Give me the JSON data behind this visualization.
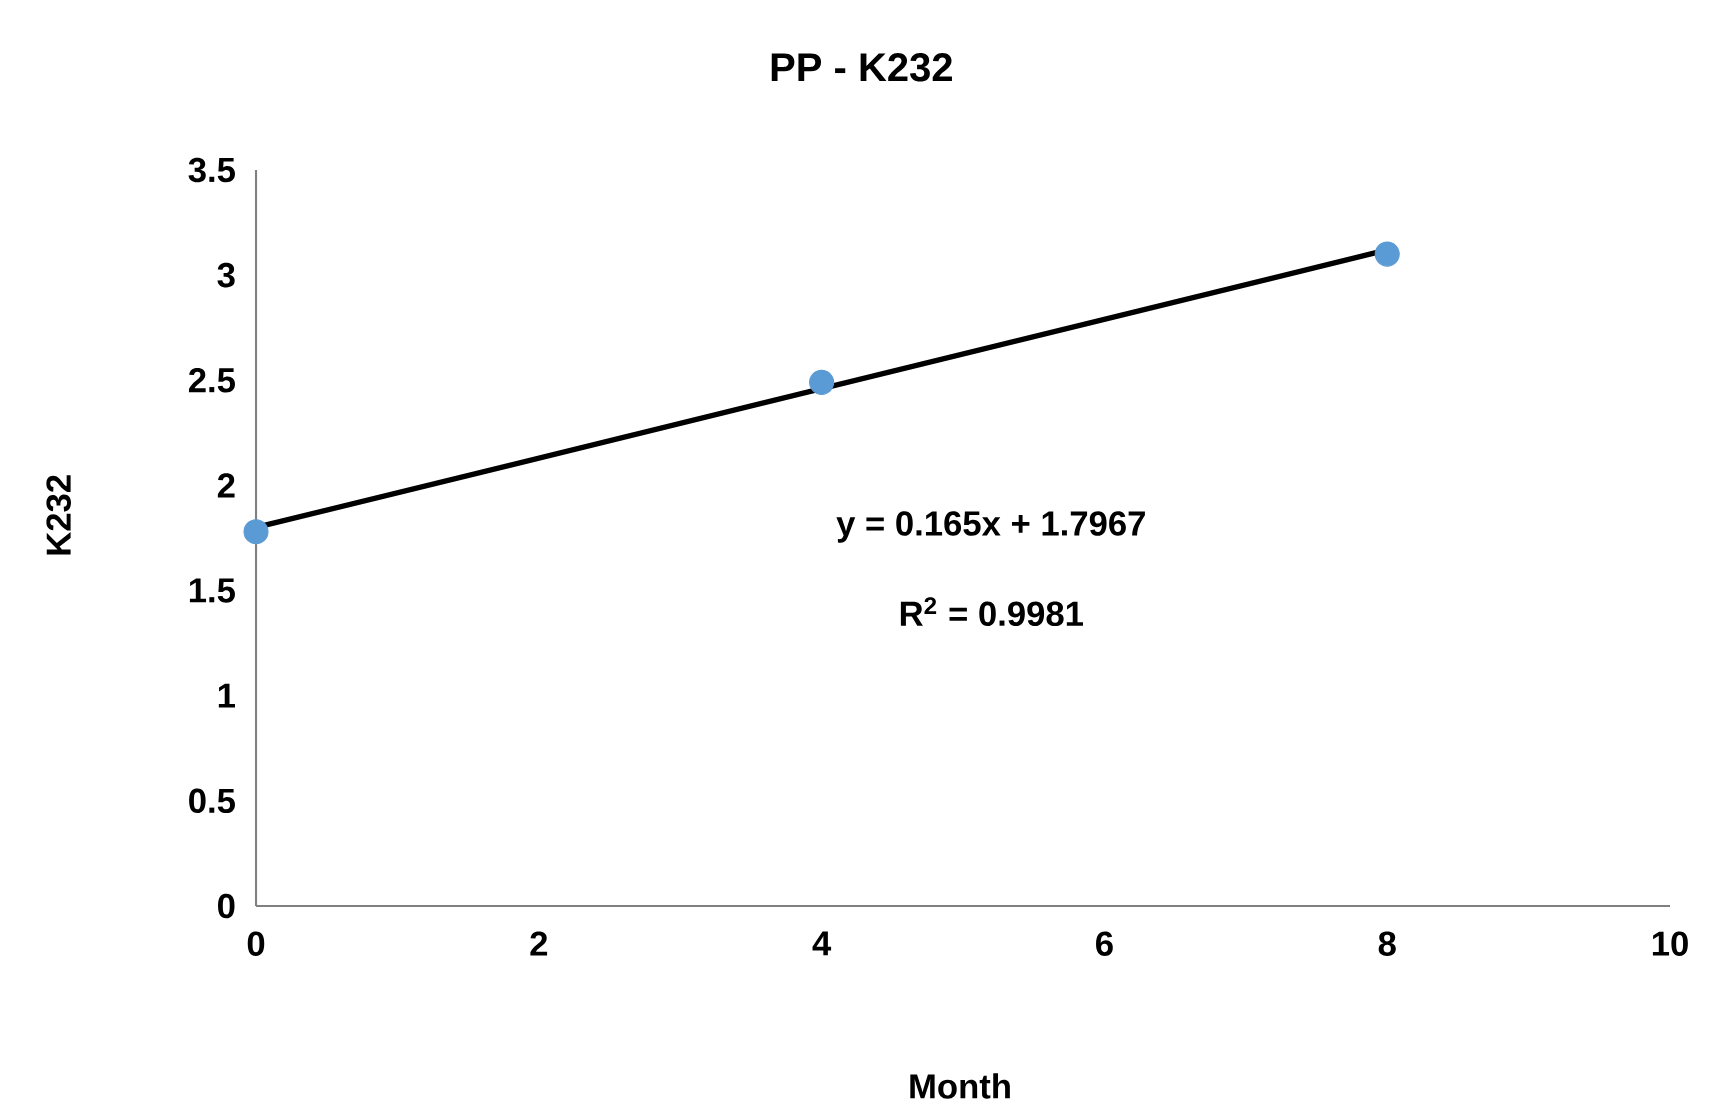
{
  "chart_data": {
    "type": "scatter",
    "title": "PP - K232",
    "xlabel": "Month",
    "ylabel": "K232",
    "series": [
      {
        "type": "scatter",
        "x": [
          0,
          4,
          8
        ],
        "values": [
          1.78,
          2.49,
          3.1
        ],
        "color": "#5b9bd5",
        "marker": "circle"
      },
      {
        "type": "line",
        "x": [
          0,
          8
        ],
        "values": [
          1.8,
          3.12
        ],
        "color": "#000000",
        "marker": "none",
        "line_style": "solid"
      }
    ],
    "annotations": [
      "y = 0.165x + 1.7967",
      "R$^{2}$ = 0.9981"
    ],
    "xlim": [
      0,
      10
    ],
    "xticks": [
      0,
      2,
      4,
      6,
      8,
      10
    ],
    "ylim": [
      0,
      3.5
    ],
    "yticks": [
      0,
      0.5,
      1,
      1.5,
      2,
      2.5,
      3,
      3.5
    ]
  }
}
